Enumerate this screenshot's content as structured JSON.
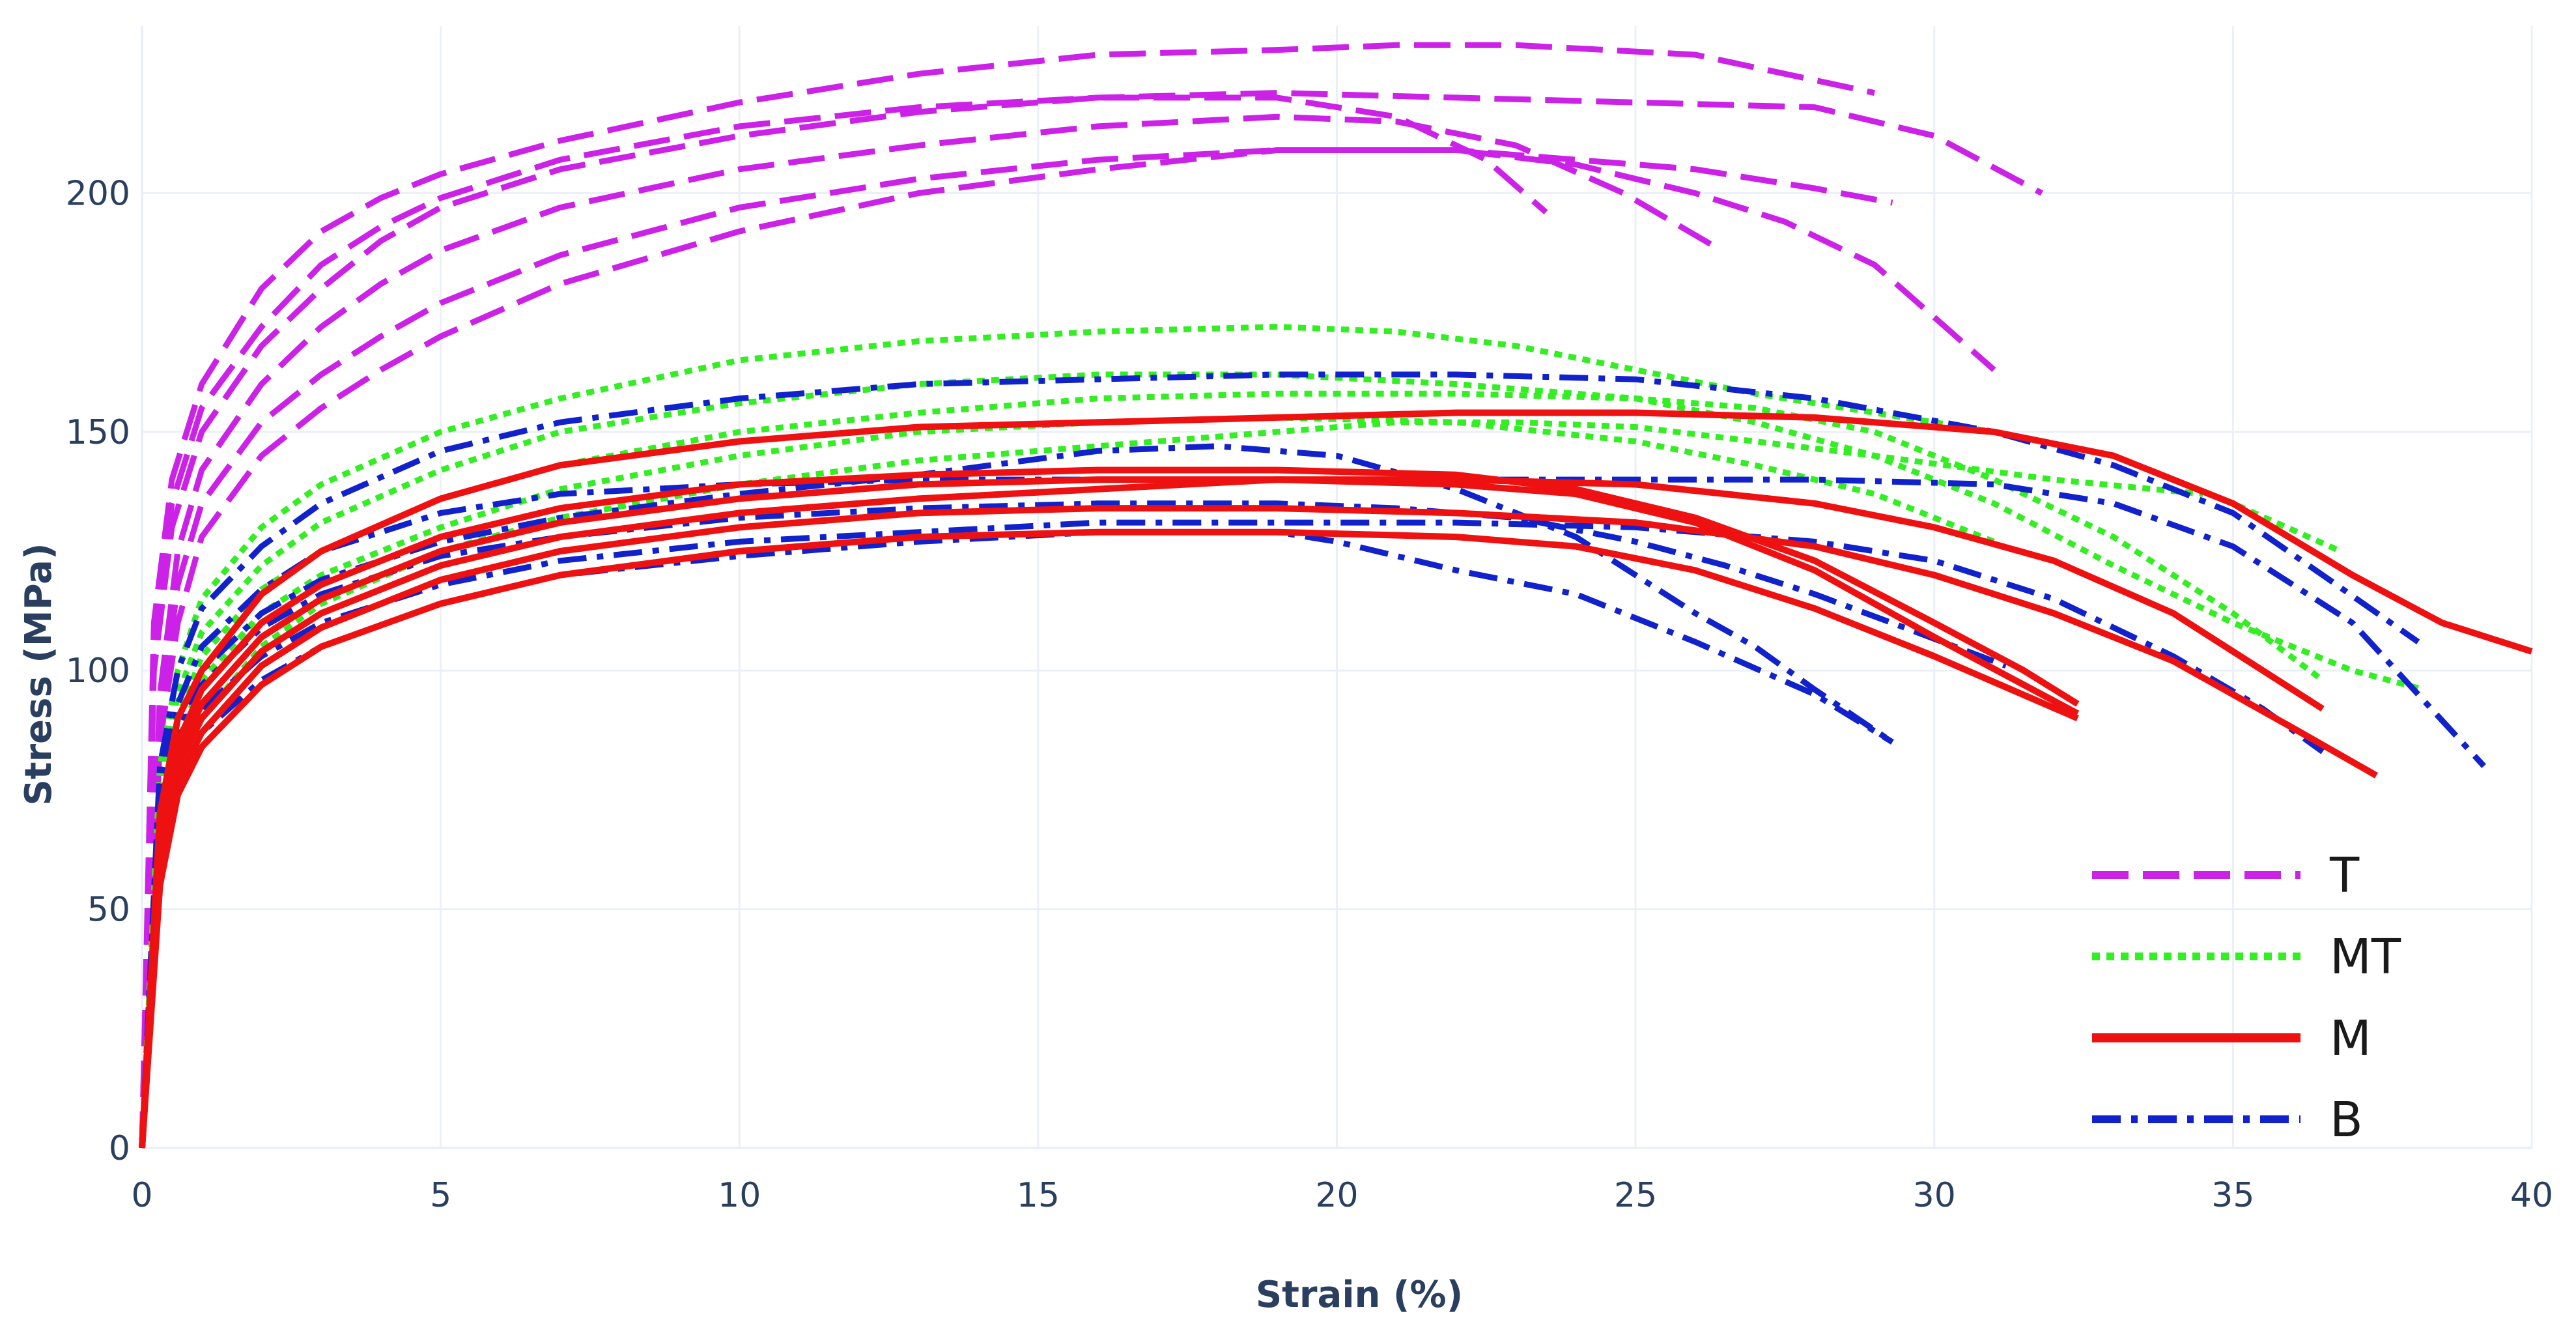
{
  "chart_data": {
    "type": "line",
    "title": "",
    "xlabel": "Strain (%)",
    "ylabel": "Stress (MPa)",
    "xlim": [
      0,
      40
    ],
    "ylim": [
      0,
      235
    ],
    "xticks": [
      0,
      5,
      10,
      15,
      20,
      25,
      30,
      35,
      40
    ],
    "yticks": [
      0,
      50,
      100,
      150,
      200
    ],
    "grid": true,
    "legend_position": "bottom-right",
    "groups": [
      {
        "name": "T",
        "color": "#cc22e8",
        "dash": "56 22"
      },
      {
        "name": "MT",
        "color": "#33ee22",
        "dash": "12 10"
      },
      {
        "name": "M",
        "color": "#ee1111",
        "dash": ""
      },
      {
        "name": "B",
        "color": "#1122cc",
        "dash": "44 16 10 16"
      }
    ],
    "series": [
      {
        "group": "T",
        "x": [
          0,
          0.2,
          0.5,
          1,
          2,
          3,
          4,
          5,
          7,
          10,
          13,
          16,
          19,
          21,
          23,
          26,
          29
        ],
        "y": [
          0,
          110,
          140,
          160,
          180,
          192,
          199,
          204,
          211,
          219,
          225,
          229,
          230,
          231,
          231,
          229,
          221
        ]
      },
      {
        "group": "T",
        "x": [
          0,
          0.2,
          0.5,
          1,
          2,
          3,
          4,
          5,
          7,
          10,
          13,
          16,
          19,
          22,
          25,
          28,
          30,
          31.8
        ],
        "y": [
          0,
          105,
          135,
          155,
          172,
          185,
          193,
          199,
          207,
          214,
          218,
          220,
          221,
          220,
          219,
          218,
          212,
          200
        ]
      },
      {
        "group": "T",
        "x": [
          0,
          0.2,
          0.5,
          1,
          2,
          3,
          4,
          5,
          7,
          10,
          13,
          16,
          19,
          21,
          22.5,
          23.5
        ],
        "y": [
          0,
          100,
          130,
          150,
          168,
          180,
          190,
          197,
          205,
          212,
          217,
          220,
          220,
          216,
          207,
          196
        ]
      },
      {
        "group": "T",
        "x": [
          0,
          0.3,
          0.6,
          1,
          2,
          3,
          4,
          5,
          7,
          10,
          13,
          16,
          19,
          21,
          23,
          24.8,
          26.3
        ],
        "y": [
          0,
          95,
          125,
          142,
          160,
          172,
          181,
          188,
          197,
          205,
          210,
          214,
          216,
          215,
          210,
          200,
          189
        ]
      },
      {
        "group": "T",
        "x": [
          0,
          0.3,
          0.6,
          1,
          2,
          3,
          4,
          5,
          7,
          10,
          13,
          16,
          19,
          22,
          24,
          26,
          28,
          29.3
        ],
        "y": [
          0,
          90,
          118,
          135,
          152,
          162,
          170,
          177,
          187,
          197,
          203,
          207,
          209,
          209,
          207,
          205,
          201,
          198
        ]
      },
      {
        "group": "T",
        "x": [
          0,
          0.3,
          0.6,
          1,
          2,
          3,
          4,
          5,
          7,
          10,
          13,
          16,
          19,
          22,
          24,
          26,
          27.5,
          29,
          30,
          31
        ],
        "y": [
          0,
          85,
          110,
          128,
          145,
          155,
          163,
          170,
          181,
          192,
          200,
          205,
          209,
          209,
          206,
          200,
          194,
          185,
          174,
          163
        ]
      },
      {
        "group": "MT",
        "x": [
          0,
          0.3,
          0.6,
          1,
          2,
          3,
          5,
          7,
          10,
          13,
          16,
          19,
          21,
          23,
          25,
          27,
          29,
          31,
          33,
          35,
          36.8
        ],
        "y": [
          0,
          80,
          100,
          115,
          130,
          139,
          150,
          157,
          165,
          169,
          171,
          172,
          171,
          168,
          163,
          158,
          154,
          150,
          145,
          135,
          125
        ]
      },
      {
        "group": "MT",
        "x": [
          0,
          0.3,
          0.6,
          1,
          2,
          3,
          5,
          7,
          10,
          13,
          16,
          19,
          22,
          25,
          27,
          29,
          31,
          33,
          35,
          37,
          38.2
        ],
        "y": [
          0,
          75,
          95,
          108,
          122,
          131,
          142,
          150,
          156,
          160,
          162,
          162,
          160,
          157,
          152,
          145,
          135,
          122,
          110,
          100,
          96
        ]
      },
      {
        "group": "MT",
        "x": [
          0,
          0.3,
          0.6,
          1,
          2,
          3,
          5,
          7,
          10,
          13,
          16,
          19,
          22,
          25,
          27,
          29,
          31,
          33,
          35,
          36.5
        ],
        "y": [
          0,
          70,
          90,
          103,
          117,
          125,
          136,
          143,
          150,
          154,
          157,
          158,
          158,
          157,
          155,
          150,
          140,
          128,
          112,
          98
        ]
      },
      {
        "group": "MT",
        "x": [
          0,
          0.3,
          0.6,
          1,
          2,
          3,
          5,
          7,
          10,
          13,
          16,
          19,
          22,
          25,
          27,
          29,
          30,
          31
        ],
        "y": [
          0,
          65,
          85,
          98,
          112,
          120,
          130,
          138,
          145,
          150,
          152,
          153,
          152,
          148,
          143,
          137,
          132,
          127
        ]
      },
      {
        "group": "MT",
        "x": [
          0,
          0.3,
          0.6,
          1,
          2,
          3,
          5,
          7,
          10,
          13,
          16,
          19,
          21,
          23,
          25,
          27,
          29,
          32,
          34.5
        ],
        "y": [
          0,
          60,
          78,
          90,
          105,
          114,
          125,
          132,
          139,
          144,
          147,
          150,
          152,
          152,
          151,
          148,
          145,
          140,
          137
        ]
      },
      {
        "group": "M",
        "x": [
          0,
          0.3,
          0.6,
          1,
          2,
          3,
          5,
          7,
          10,
          13,
          16,
          19,
          22,
          25,
          28,
          31,
          33,
          35,
          37,
          38.5,
          40
        ],
        "y": [
          0,
          70,
          90,
          100,
          116,
          125,
          136,
          143,
          148,
          151,
          152,
          153,
          154,
          154,
          153,
          150,
          145,
          135,
          120,
          110,
          104
        ]
      },
      {
        "group": "M",
        "x": [
          0,
          0.3,
          0.6,
          1,
          2,
          3,
          5,
          7,
          10,
          13,
          16,
          19,
          22,
          24,
          26,
          28,
          30,
          31.5,
          32.4
        ],
        "y": [
          0,
          65,
          85,
          96,
          110,
          118,
          128,
          134,
          139,
          141,
          142,
          142,
          141,
          138,
          132,
          123,
          110,
          100,
          93
        ]
      },
      {
        "group": "M",
        "x": [
          0,
          0.3,
          0.6,
          1,
          2,
          3,
          5,
          7,
          10,
          13,
          16,
          19,
          22,
          24,
          26,
          28,
          30,
          31.5,
          32.4
        ],
        "y": [
          0,
          62,
          82,
          93,
          107,
          115,
          125,
          131,
          136,
          139,
          140,
          140,
          139,
          137,
          131,
          121,
          107,
          97,
          91
        ]
      },
      {
        "group": "M",
        "x": [
          0,
          0.3,
          0.6,
          1,
          2,
          3,
          5,
          7,
          10,
          13,
          16,
          19,
          22,
          25,
          28,
          30,
          32,
          34,
          35.5,
          36.5
        ],
        "y": [
          0,
          60,
          80,
          90,
          104,
          112,
          122,
          128,
          133,
          136,
          138,
          140,
          140,
          139,
          135,
          130,
          123,
          112,
          100,
          92
        ]
      },
      {
        "group": "M",
        "x": [
          0,
          0.3,
          0.6,
          1,
          2,
          3,
          5,
          7,
          10,
          13,
          16,
          19,
          22,
          25,
          28,
          30,
          32,
          34,
          36,
          37.4
        ],
        "y": [
          0,
          58,
          77,
          87,
          101,
          109,
          119,
          125,
          130,
          133,
          134,
          134,
          133,
          131,
          126,
          120,
          112,
          102,
          88,
          78
        ]
      },
      {
        "group": "M",
        "x": [
          0,
          0.3,
          0.6,
          1,
          2,
          3,
          5,
          7,
          10,
          13,
          16,
          19,
          22,
          24,
          26,
          28,
          30,
          32.4
        ],
        "y": [
          0,
          55,
          74,
          84,
          97,
          105,
          114,
          120,
          125,
          128,
          129,
          129,
          128,
          126,
          121,
          113,
          103,
          90
        ]
      },
      {
        "group": "B",
        "x": [
          0,
          0.3,
          0.6,
          1,
          2,
          3,
          5,
          7,
          10,
          13,
          16,
          19,
          22,
          25,
          28,
          31,
          33,
          35,
          36.5,
          38.1
        ],
        "y": [
          0,
          80,
          100,
          113,
          126,
          135,
          146,
          152,
          157,
          160,
          161,
          162,
          162,
          161,
          157,
          150,
          143,
          133,
          120,
          106
        ]
      },
      {
        "group": "B",
        "x": [
          0,
          0.3,
          0.6,
          1,
          2,
          3,
          5,
          7,
          10,
          13,
          16,
          19,
          22,
          25,
          28,
          31,
          33,
          35,
          37,
          39.2
        ],
        "y": [
          0,
          75,
          93,
          105,
          117,
          125,
          133,
          137,
          139,
          140,
          140,
          140,
          140,
          140,
          140,
          139,
          135,
          126,
          110,
          80
        ]
      },
      {
        "group": "B",
        "x": [
          0,
          0.3,
          0.6,
          1,
          2,
          3,
          5,
          7,
          10,
          13,
          16,
          18,
          20,
          22,
          24,
          25,
          26,
          27,
          28,
          29.3
        ],
        "y": [
          0,
          70,
          88,
          100,
          112,
          119,
          127,
          132,
          137,
          141,
          146,
          147,
          145,
          138,
          128,
          120,
          112,
          105,
          96,
          85
        ]
      },
      {
        "group": "B",
        "x": [
          0,
          0.3,
          0.6,
          1,
          2,
          3,
          5,
          7,
          10,
          13,
          16,
          19,
          21,
          23,
          25,
          26.5,
          28,
          29.5,
          31.2
        ],
        "y": [
          0,
          68,
          86,
          97,
          109,
          116,
          124,
          128,
          132,
          134,
          135,
          135,
          134,
          132,
          127,
          122,
          116,
          109,
          101
        ]
      },
      {
        "group": "B",
        "x": [
          0,
          0.3,
          0.6,
          1,
          2,
          3,
          5,
          7,
          10,
          13,
          16,
          19,
          22,
          25,
          28,
          30,
          32,
          34,
          35.5,
          36.5
        ],
        "y": [
          0,
          65,
          82,
          92,
          103,
          110,
          118,
          123,
          127,
          129,
          131,
          131,
          131,
          130,
          127,
          123,
          115,
          103,
          92,
          83
        ]
      },
      {
        "group": "B",
        "x": [
          0,
          0.3,
          0.6,
          1,
          2,
          3,
          5,
          7,
          10,
          13,
          16,
          19,
          20,
          22,
          24,
          26,
          28,
          29.3
        ],
        "y": [
          0,
          60,
          77,
          87,
          98,
          105,
          114,
          120,
          124,
          127,
          129,
          129,
          127,
          121,
          116,
          106,
          95,
          85
        ]
      }
    ]
  }
}
